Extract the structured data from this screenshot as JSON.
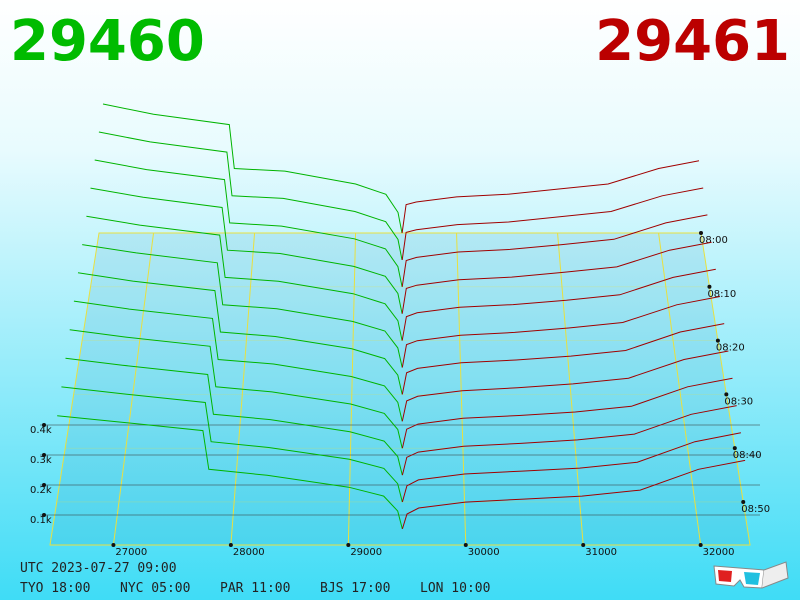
{
  "chart_data": {
    "type": "depth3d",
    "bid_price": 29460,
    "ask_price": 29461,
    "xlim": [
      26460,
      32420
    ],
    "xticks": [
      27000,
      28000,
      29000,
      30000,
      31000,
      32000
    ],
    "ylim": [
      0,
      600
    ],
    "yticks": [
      {
        "value": 100,
        "label": "0.1k"
      },
      {
        "value": 200,
        "label": "0.2k"
      },
      {
        "value": 300,
        "label": "0.3k"
      },
      {
        "value": 400,
        "label": "0.4k"
      }
    ],
    "zlim": [
      0,
      58
    ],
    "zticks": [
      {
        "value": 0,
        "label": "08:00"
      },
      {
        "value": 10,
        "label": "08:10"
      },
      {
        "value": 20,
        "label": "08:20"
      },
      {
        "value": 30,
        "label": "08:30"
      },
      {
        "value": 40,
        "label": "08:40"
      },
      {
        "value": 50,
        "label": "08:50"
      }
    ],
    "times": [
      0,
      5,
      10,
      15,
      20,
      25,
      30,
      35,
      40,
      45,
      50,
      55
    ],
    "bid": {
      "color": "#00b400",
      "prices": [
        26500,
        27000,
        27750,
        27800,
        28300,
        29000,
        29300,
        29420,
        29460
      ],
      "depths": [
        [
          500,
          460,
          420,
          250,
          240,
          190,
          150,
          80,
          0
        ],
        [
          489,
          451,
          412,
          245,
          235,
          185,
          146,
          78,
          0
        ],
        [
          478,
          442,
          404,
          241,
          229,
          181,
          143,
          76,
          0
        ],
        [
          467,
          433,
          395,
          236,
          224,
          176,
          139,
          75,
          0
        ],
        [
          456,
          424,
          387,
          232,
          218,
          172,
          135,
          73,
          0
        ],
        [
          445,
          415,
          379,
          227,
          213,
          167,
          132,
          71,
          0
        ],
        [
          435,
          405,
          371,
          223,
          207,
          163,
          128,
          69,
          0
        ],
        [
          424,
          396,
          363,
          218,
          202,
          158,
          125,
          67,
          0
        ],
        [
          413,
          387,
          355,
          214,
          196,
          154,
          121,
          65,
          0
        ],
        [
          402,
          378,
          346,
          209,
          191,
          149,
          117,
          64,
          0
        ],
        [
          391,
          369,
          338,
          205,
          185,
          145,
          114,
          62,
          0
        ],
        [
          380,
          360,
          330,
          200,
          180,
          140,
          110,
          60,
          0
        ]
      ]
    },
    "ask": {
      "color": "#a00000",
      "prices": [
        29461,
        29500,
        29600,
        30000,
        30500,
        31000,
        31500,
        32000,
        32400
      ],
      "depths": [
        [
          0,
          110,
          120,
          140,
          150,
          170,
          190,
          250,
          280
        ],
        [
          0,
          105,
          115,
          135,
          145,
          165,
          185,
          245,
          275
        ],
        [
          0,
          99,
          111,
          131,
          141,
          159,
          179,
          241,
          271
        ],
        [
          0,
          94,
          106,
          126,
          136,
          154,
          174,
          236,
          266
        ],
        [
          0,
          88,
          102,
          122,
          132,
          148,
          168,
          232,
          262
        ],
        [
          0,
          83,
          97,
          117,
          127,
          143,
          163,
          227,
          257
        ],
        [
          0,
          77,
          93,
          113,
          123,
          137,
          157,
          223,
          253
        ],
        [
          0,
          72,
          88,
          108,
          118,
          132,
          152,
          218,
          248
        ],
        [
          0,
          66,
          84,
          104,
          114,
          126,
          146,
          214,
          244
        ],
        [
          0,
          61,
          79,
          99,
          109,
          121,
          141,
          209,
          239
        ],
        [
          0,
          55,
          75,
          95,
          105,
          115,
          135,
          205,
          235
        ],
        [
          0,
          50,
          70,
          90,
          100,
          110,
          130,
          200,
          230
        ]
      ]
    }
  },
  "footer": {
    "utc": "UTC 2023-07-27 09:00",
    "cities": [
      "TYO 18:00",
      "NYC 05:00",
      "PAR 11:00",
      "BJS 17:00",
      "LON 10:00"
    ]
  }
}
